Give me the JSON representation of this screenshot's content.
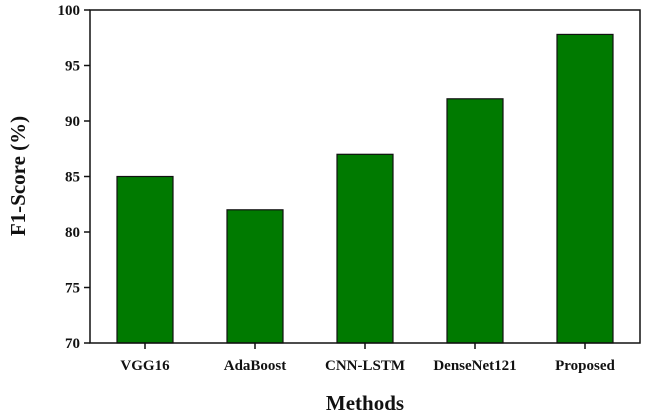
{
  "chart_data": {
    "type": "bar",
    "title": "",
    "xlabel": "Methods",
    "ylabel": "F1-Score (%)",
    "categories": [
      "VGG16",
      "AdaBoost",
      "CNN-LSTM",
      "DenseNet121",
      "Proposed"
    ],
    "values": [
      85,
      82,
      87,
      92,
      97.8
    ],
    "ylim": [
      70,
      100
    ],
    "yticks": [
      70,
      75,
      80,
      85,
      90,
      95,
      100
    ],
    "bar_color": "#007a00",
    "bar_edge_color": "#111111",
    "grid": false,
    "legend": "none"
  }
}
